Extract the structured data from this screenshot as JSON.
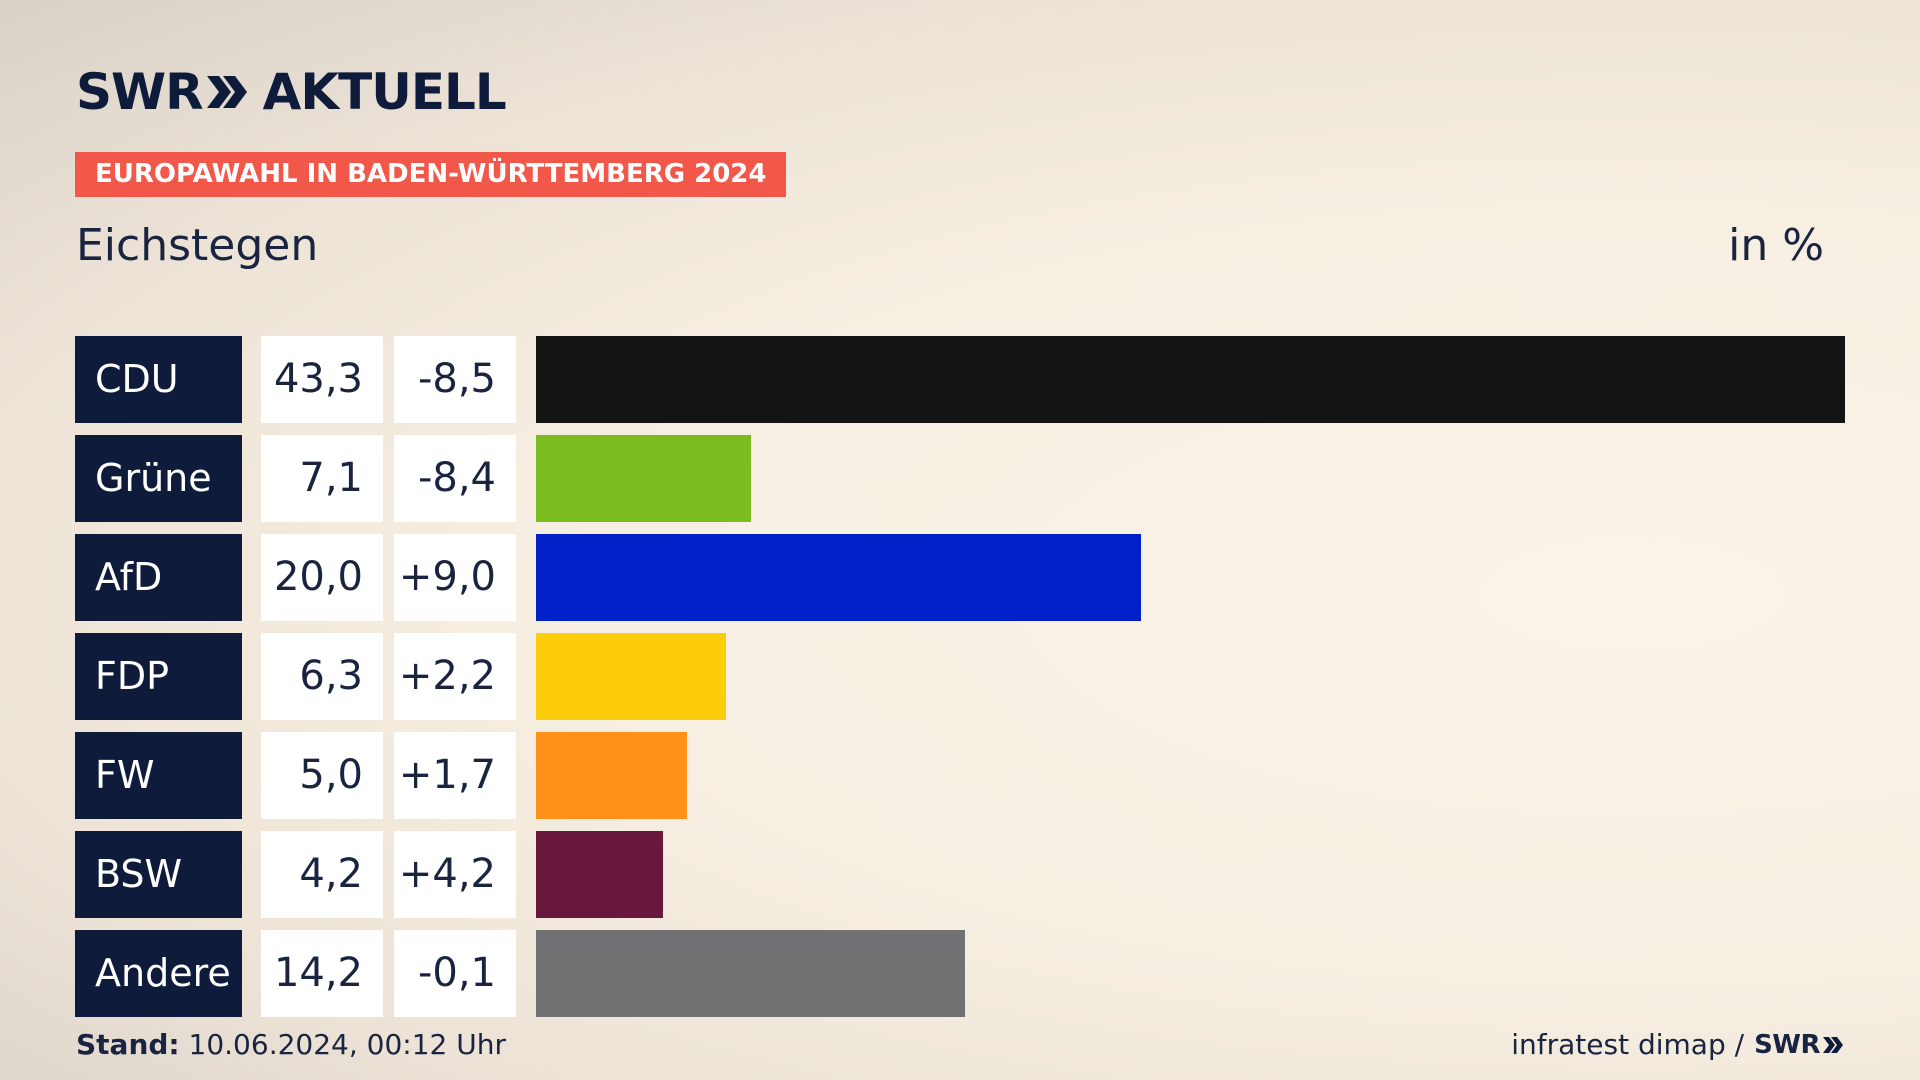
{
  "header": {
    "logo_left": "SWR",
    "logo_right": "AKTUELL",
    "badge": "EUROPAWAHL IN BADEN-WÜRTTEMBERG 2024",
    "subtitle": "Eichstegen",
    "unit": "in %"
  },
  "chart_data": {
    "type": "bar",
    "orientation": "horizontal",
    "categories": [
      "CDU",
      "Grüne",
      "AfD",
      "FDP",
      "FW",
      "BSW",
      "Andere"
    ],
    "values": [
      "43,3",
      "7,1",
      "20,0",
      "6,3",
      "5,0",
      "4,2",
      "14,2"
    ],
    "value_numbers": [
      43.3,
      7.1,
      20.0,
      6.3,
      5.0,
      4.2,
      14.2
    ],
    "differences": [
      "-8,5",
      "-8,4",
      "+9,0",
      "+2,2",
      "+1,7",
      "+4,2",
      "-0,1"
    ],
    "colors": [
      "#141414",
      "#7bbd1e",
      "#0020c8",
      "#fdcc0a",
      "#fe9219",
      "#6a173e",
      "#707172"
    ],
    "unit": "in %",
    "xlim": [
      0,
      43.3
    ],
    "grid": false
  },
  "footer": {
    "stand_label": "Stand:",
    "stand_value": "10.06.2024, 00:12 Uhr",
    "source": "infratest dimap /",
    "source_logo": "SWR"
  }
}
